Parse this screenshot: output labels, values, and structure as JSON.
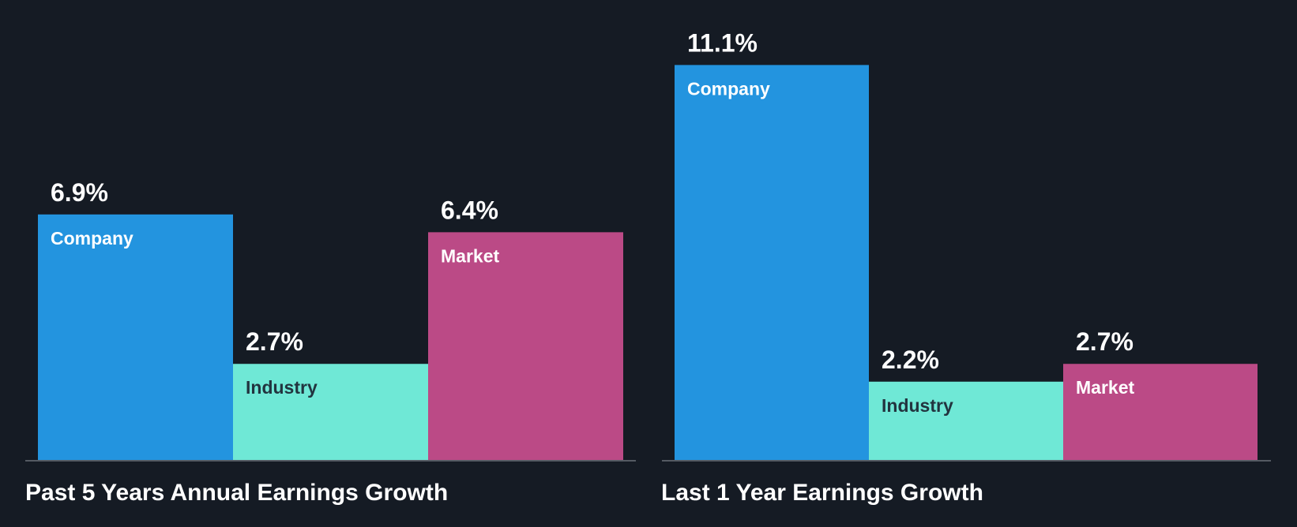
{
  "background_color": "#151b24",
  "baseline_color": "#555b63",
  "chart_data": [
    {
      "type": "bar",
      "title": "Past 5 Years Annual Earnings Growth",
      "categories": [
        "Company",
        "Industry",
        "Market"
      ],
      "values": [
        6.9,
        2.7,
        6.4
      ],
      "value_labels": [
        "6.9%",
        "2.7%",
        "6.4%"
      ],
      "colors": [
        "#2394df",
        "#6fe8d6",
        "#bb4a86"
      ],
      "label_colors": [
        "#ffffff",
        "#22343f",
        "#ffffff"
      ],
      "unit": "%",
      "xlabel": "",
      "ylabel": "",
      "grid": false,
      "legend": "none"
    },
    {
      "type": "bar",
      "title": "Last 1 Year Earnings Growth",
      "categories": [
        "Company",
        "Industry",
        "Market"
      ],
      "values": [
        11.1,
        2.2,
        2.7
      ],
      "value_labels": [
        "11.1%",
        "2.2%",
        "2.7%"
      ],
      "colors": [
        "#2394df",
        "#6fe8d6",
        "#bb4a86"
      ],
      "label_colors": [
        "#ffffff",
        "#22343f",
        "#ffffff"
      ],
      "unit": "%",
      "xlabel": "",
      "ylabel": "",
      "grid": false,
      "legend": "none"
    }
  ]
}
